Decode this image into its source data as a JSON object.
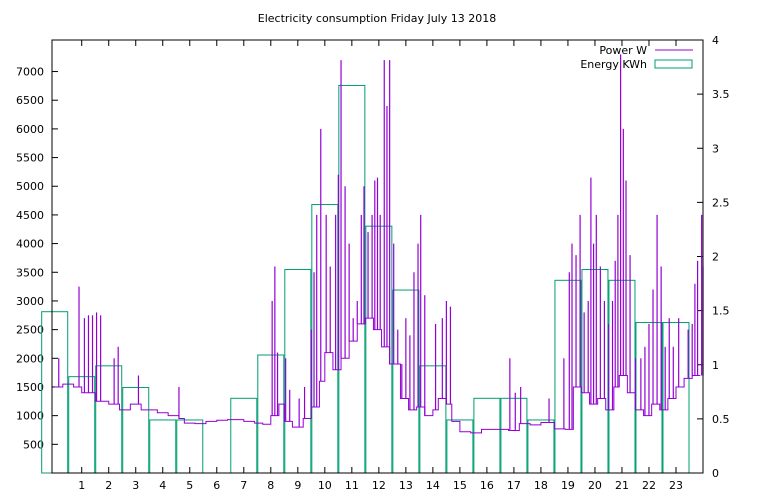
{
  "chart_data": {
    "type": "line",
    "title": "Electricity consumption Friday July 13 2018",
    "x": {
      "ticks": [
        1,
        2,
        3,
        4,
        5,
        6,
        7,
        8,
        9,
        10,
        11,
        12,
        13,
        14,
        15,
        16,
        17,
        18,
        19,
        20,
        21,
        22,
        23
      ],
      "range": [
        -0.1,
        24
      ]
    },
    "y_left": {
      "ticks": [
        500,
        1000,
        1500,
        2000,
        2500,
        3000,
        3500,
        4000,
        4500,
        5000,
        5500,
        6000,
        6500,
        7000
      ],
      "range": [
        0,
        7550
      ]
    },
    "y_right": {
      "ticks": [
        "0",
        "0.5",
        "1",
        "1.5",
        "2",
        "2.5",
        "3",
        "3.5",
        "4"
      ],
      "range": [
        0,
        4
      ]
    },
    "legend": {
      "placement": "top-right",
      "items": [
        {
          "label": "Power W",
          "color": "#9400D3",
          "kind": "line"
        },
        {
          "label": "Energy KWh",
          "color": "#009E73",
          "kind": "box"
        }
      ]
    },
    "series": [
      {
        "name": "Power W",
        "axis": "left",
        "color": "#9400D3",
        "baseline": [
          [
            0,
            1500
          ],
          [
            0.3,
            1550
          ],
          [
            0.7,
            1500
          ],
          [
            1.0,
            1400
          ],
          [
            1.5,
            1250
          ],
          [
            2.0,
            1200
          ],
          [
            2.4,
            1100
          ],
          [
            2.8,
            1200
          ],
          [
            3.2,
            1100
          ],
          [
            3.8,
            1050
          ],
          [
            4.2,
            1000
          ],
          [
            4.6,
            950
          ],
          [
            4.8,
            870
          ],
          [
            5.2,
            860
          ],
          [
            5.6,
            900
          ],
          [
            6.0,
            920
          ],
          [
            6.4,
            930
          ],
          [
            7.0,
            900
          ],
          [
            7.4,
            870
          ],
          [
            7.7,
            850
          ],
          [
            8.0,
            1000
          ],
          [
            8.3,
            1200
          ],
          [
            8.5,
            900
          ],
          [
            8.8,
            800
          ],
          [
            9.2,
            950
          ],
          [
            9.5,
            1150
          ],
          [
            9.8,
            1600
          ],
          [
            10.0,
            2100
          ],
          [
            10.3,
            1800
          ],
          [
            10.6,
            2000
          ],
          [
            10.9,
            2300
          ],
          [
            11.2,
            2600
          ],
          [
            11.5,
            2700
          ],
          [
            11.8,
            2500
          ],
          [
            12.1,
            2200
          ],
          [
            12.4,
            1900
          ],
          [
            12.8,
            1300
          ],
          [
            13.1,
            1100
          ],
          [
            13.4,
            1150
          ],
          [
            13.7,
            1000
          ],
          [
            14.0,
            1100
          ],
          [
            14.2,
            1300
          ],
          [
            14.5,
            1200
          ],
          [
            14.7,
            900
          ],
          [
            15.0,
            720
          ],
          [
            15.4,
            700
          ],
          [
            15.8,
            760
          ],
          [
            16.4,
            760
          ],
          [
            16.8,
            740
          ],
          [
            17.2,
            860
          ],
          [
            17.6,
            840
          ],
          [
            18.0,
            880
          ],
          [
            18.5,
            770
          ],
          [
            18.9,
            760
          ],
          [
            19.2,
            1500
          ],
          [
            19.5,
            1400
          ],
          [
            19.8,
            1200
          ],
          [
            20.1,
            1300
          ],
          [
            20.4,
            1100
          ],
          [
            20.7,
            1500
          ],
          [
            20.9,
            1700
          ],
          [
            21.2,
            1400
          ],
          [
            21.5,
            1100
          ],
          [
            21.8,
            1000
          ],
          [
            22.1,
            1200
          ],
          [
            22.4,
            1100
          ],
          [
            22.7,
            1300
          ],
          [
            23.0,
            1500
          ],
          [
            23.3,
            1650
          ],
          [
            23.6,
            1700
          ],
          [
            23.9,
            1700
          ]
        ],
        "spikes": [
          [
            0.15,
            2000
          ],
          [
            0.9,
            3250
          ],
          [
            1.1,
            2700
          ],
          [
            1.25,
            2750
          ],
          [
            1.4,
            2750
          ],
          [
            1.55,
            2800
          ],
          [
            1.7,
            2750
          ],
          [
            2.2,
            2000
          ],
          [
            2.35,
            2200
          ],
          [
            3.1,
            1700
          ],
          [
            4.6,
            1500
          ],
          [
            8.05,
            3000
          ],
          [
            8.15,
            3600
          ],
          [
            8.25,
            2100
          ],
          [
            8.55,
            2000
          ],
          [
            8.7,
            1450
          ],
          [
            9.05,
            1300
          ],
          [
            9.25,
            1500
          ],
          [
            9.5,
            2500
          ],
          [
            9.6,
            3500
          ],
          [
            9.7,
            4500
          ],
          [
            9.85,
            6000
          ],
          [
            10.05,
            4500
          ],
          [
            10.2,
            3600
          ],
          [
            10.4,
            4500
          ],
          [
            10.5,
            5200
          ],
          [
            10.6,
            7200
          ],
          [
            10.75,
            5000
          ],
          [
            10.9,
            4000
          ],
          [
            11.05,
            2700
          ],
          [
            11.2,
            3000
          ],
          [
            11.35,
            4500
          ],
          [
            11.45,
            5000
          ],
          [
            11.6,
            4200
          ],
          [
            11.75,
            4500
          ],
          [
            11.85,
            5100
          ],
          [
            11.95,
            5150
          ],
          [
            12.05,
            4500
          ],
          [
            12.2,
            7200
          ],
          [
            12.3,
            6400
          ],
          [
            12.4,
            7200
          ],
          [
            12.55,
            4000
          ],
          [
            12.7,
            2500
          ],
          [
            12.85,
            1900
          ],
          [
            13.0,
            2700
          ],
          [
            13.15,
            2400
          ],
          [
            13.3,
            3500
          ],
          [
            13.45,
            4000
          ],
          [
            13.55,
            4500
          ],
          [
            13.7,
            3100
          ],
          [
            14.1,
            2600
          ],
          [
            14.35,
            2700
          ],
          [
            14.5,
            3000
          ],
          [
            14.65,
            2900
          ],
          [
            16.85,
            2000
          ],
          [
            17.05,
            1400
          ],
          [
            17.25,
            1500
          ],
          [
            18.3,
            1300
          ],
          [
            18.85,
            2000
          ],
          [
            19.05,
            3500
          ],
          [
            19.15,
            4000
          ],
          [
            19.3,
            3800
          ],
          [
            19.45,
            4500
          ],
          [
            19.6,
            2800
          ],
          [
            19.75,
            3000
          ],
          [
            19.85,
            5150
          ],
          [
            19.95,
            4000
          ],
          [
            20.05,
            4500
          ],
          [
            20.2,
            3600
          ],
          [
            20.35,
            3000
          ],
          [
            20.5,
            2600
          ],
          [
            20.65,
            3000
          ],
          [
            20.75,
            3700
          ],
          [
            20.85,
            4500
          ],
          [
            20.95,
            7300
          ],
          [
            21.05,
            6000
          ],
          [
            21.15,
            5100
          ],
          [
            21.3,
            3800
          ],
          [
            21.5,
            2000
          ],
          [
            21.7,
            2000
          ],
          [
            21.85,
            2200
          ],
          [
            22.0,
            2600
          ],
          [
            22.15,
            3200
          ],
          [
            22.3,
            4500
          ],
          [
            22.45,
            3600
          ],
          [
            22.6,
            2200
          ],
          [
            22.75,
            2700
          ],
          [
            22.9,
            2200
          ],
          [
            23.1,
            2700
          ],
          [
            23.45,
            2500
          ],
          [
            23.6,
            2600
          ],
          [
            23.7,
            3300
          ],
          [
            23.8,
            3700
          ],
          [
            23.95,
            4500
          ],
          [
            24.0,
            3600
          ]
        ]
      },
      {
        "name": "Energy KWh",
        "axis": "right",
        "color": "#009E73",
        "hours": [
          0,
          1,
          2,
          3,
          4,
          5,
          6,
          7,
          8,
          9,
          10,
          11,
          12,
          13,
          14,
          15,
          16,
          17,
          18,
          19,
          20,
          21,
          22,
          23
        ],
        "values": [
          1.49,
          0.89,
          0.99,
          0.79,
          0.49,
          0.49,
          0.0,
          0.69,
          1.09,
          1.88,
          2.48,
          3.58,
          2.28,
          1.69,
          0.99,
          0.49,
          0.69,
          0.69,
          0.49,
          1.78,
          1.88,
          1.78,
          1.39,
          1.39
        ]
      }
    ]
  }
}
